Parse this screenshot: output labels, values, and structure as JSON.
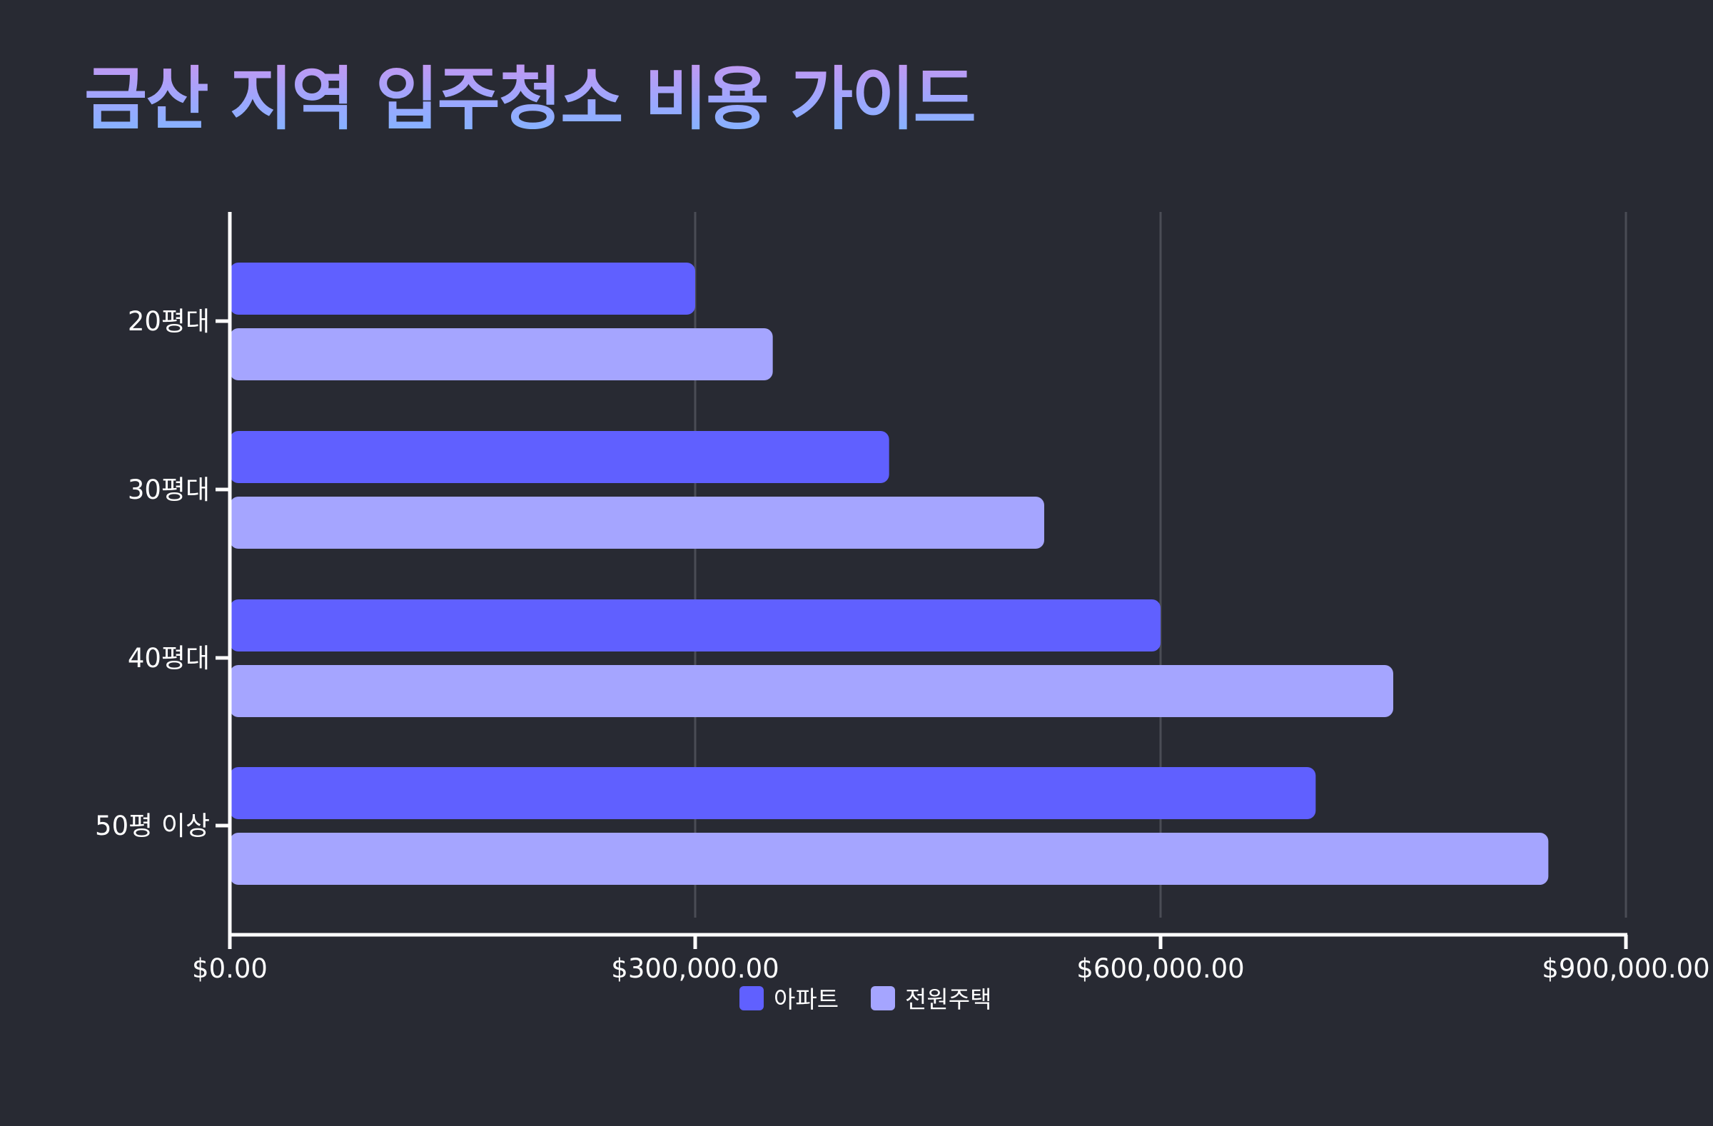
{
  "page": {
    "title": "금산 지역 입주청소 비용 가이드"
  },
  "colors": {
    "background": "#282a33",
    "apartment": "#6060ff",
    "house": "#a5a5ff",
    "axis": "#ffffff",
    "grid": "#4a4c55"
  },
  "chart_data": {
    "type": "bar",
    "orientation": "horizontal",
    "title": "금산 지역 입주청소 비용 가이드",
    "categories": [
      "20평대",
      "30평대",
      "40평대",
      "50평 이상"
    ],
    "series": [
      {
        "name": "아파트",
        "color": "#6060ff",
        "values": [
          300000,
          425000,
          600000,
          700000
        ]
      },
      {
        "name": "전원주택",
        "color": "#a5a5ff",
        "values": [
          350000,
          525000,
          750000,
          850000
        ]
      }
    ],
    "xlim": [
      0,
      900000
    ],
    "x_ticks": [
      0,
      300000,
      600000,
      900000
    ],
    "x_tick_labels": [
      "$0.00",
      "$300,000.00",
      "$600,000.00",
      "$900,000.00"
    ],
    "xlabel": "",
    "ylabel": "",
    "grid": "vertical",
    "legend_position": "bottom-center"
  }
}
